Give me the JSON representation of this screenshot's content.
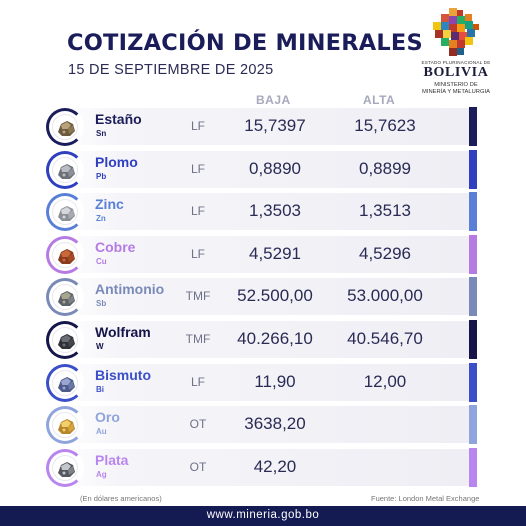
{
  "header": {
    "title": "COTIZACIÓN DE MINERALES",
    "date": "15 DE SEPTIEMBRE DE 2025"
  },
  "logo": {
    "estado": "ESTADO PLURINACIONAL DE",
    "country": "BOLIVIA",
    "ministry_line1": "MINISTERIO DE",
    "ministry_line2": "MINERÍA Y METALURGIA"
  },
  "columns": {
    "low": "BAJA",
    "high": "ALTA"
  },
  "minerals": [
    {
      "name": "Estaño",
      "symbol": "Sn",
      "unit": "LF",
      "low": "15,7397",
      "high": "15,7623",
      "color": "#1b1c5a",
      "icon": "tin-ore-icon"
    },
    {
      "name": "Plomo",
      "symbol": "Pb",
      "unit": "LF",
      "low": "0,8890",
      "high": "0,8899",
      "color": "#2f3fbf",
      "icon": "lead-ore-icon"
    },
    {
      "name": "Zinc",
      "symbol": "Zn",
      "unit": "LF",
      "low": "1,3503",
      "high": "1,3513",
      "color": "#5a7fd6",
      "icon": "zinc-ore-icon"
    },
    {
      "name": "Cobre",
      "symbol": "Cu",
      "unit": "LF",
      "low": "4,5291",
      "high": "4,5296",
      "color": "#b57be3",
      "icon": "copper-ore-icon"
    },
    {
      "name": "Antimonio",
      "symbol": "Sb",
      "unit": "TMF",
      "low": "52.500,00",
      "high": "53.000,00",
      "color": "#7a8ab8",
      "icon": "antimony-ore-icon"
    },
    {
      "name": "Wolfram",
      "symbol": "W",
      "unit": "TMF",
      "low": "40.266,10",
      "high": "40.546,70",
      "color": "#15154a",
      "icon": "wolfram-ore-icon"
    },
    {
      "name": "Bismuto",
      "symbol": "Bi",
      "unit": "LF",
      "low": "11,90",
      "high": "12,00",
      "color": "#3a4fc8",
      "icon": "bismuth-ore-icon"
    },
    {
      "name": "Oro",
      "symbol": "Au",
      "unit": "OT",
      "low": "3638,20",
      "high": "",
      "color": "#8fa4dc",
      "icon": "gold-nugget-icon"
    },
    {
      "name": "Plata",
      "symbol": "Ag",
      "unit": "OT",
      "low": "42,20",
      "high": "",
      "color": "#b985ee",
      "icon": "silver-ore-icon"
    }
  ],
  "footer": {
    "note": "(En dólares americanos)",
    "source": "Fuente: London Metal Exchange",
    "url": "www.mineria.gob.bo"
  },
  "colors": {
    "navy": "#141a52",
    "title": "#1b1c5a",
    "row_bg": "#eeeef4"
  }
}
